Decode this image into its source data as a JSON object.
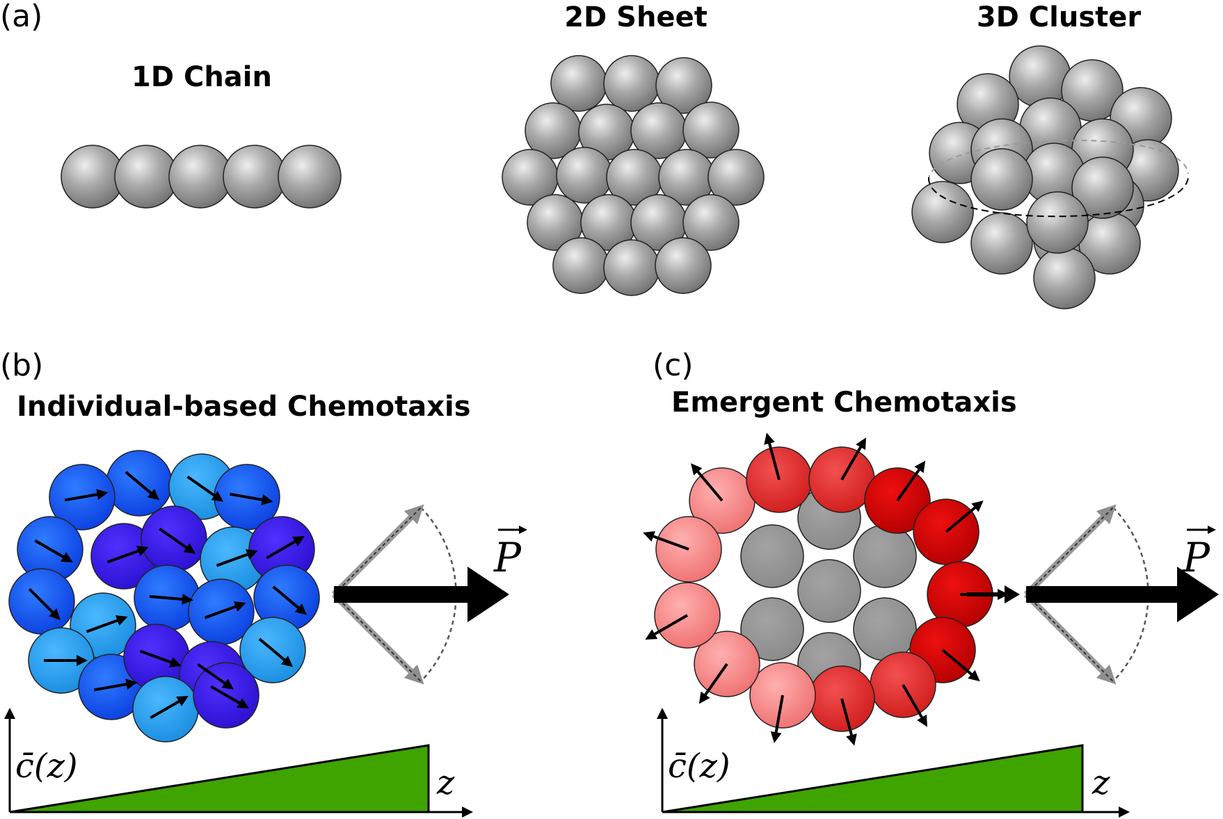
{
  "panel_a": {
    "label": "(a)",
    "chain_title": "1D Chain",
    "sheet_title": "2D Sheet",
    "cluster_title": "3D Cluster"
  },
  "panel_b": {
    "label": "(b)",
    "title": "Individual-based Chemotaxis",
    "vector_label": "P",
    "ylabel": "c̄(z)",
    "xlabel": "z"
  },
  "panel_c": {
    "label": "(c)",
    "title": "Emergent Chemotaxis",
    "vector_label": "P",
    "ylabel": "c̄(z)",
    "xlabel": "z"
  },
  "colors": {
    "cell_gray": "#9a9a9a",
    "gradient_fill": "#3fa300",
    "blue_dark": "#1a1ae0",
    "blue_mid": "#1f5fe8",
    "blue_light": "#2fa0ea",
    "red_dark": "#c40000",
    "red_mid": "#e23a3a",
    "red_light": "#f08585"
  }
}
